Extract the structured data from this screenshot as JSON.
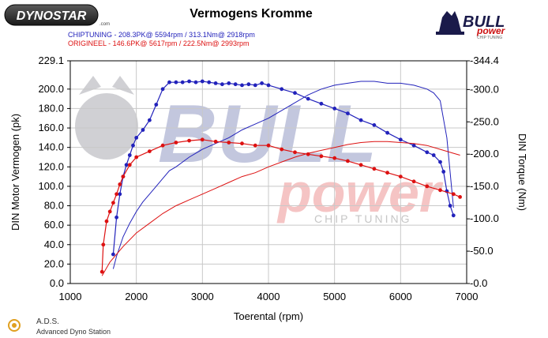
{
  "header": {
    "title": "Vermogens Kromme",
    "brand_left": "DYNOSTAR",
    "brand_left_suffix": ".com",
    "brand_right_1": "BULL",
    "brand_right_2": "power",
    "brand_right_sub": "CHIP TUNING",
    "legend_line_1": "CHIPTUNING  - 208.3PK@ 5594rpm / 313.1Nm@ 2918rpm",
    "legend_line_2": "ORIGINEEL  - 146.6PK@ 5617rpm / 222.5Nm@ 2993rpm"
  },
  "watermark": {
    "text_1": "BULL",
    "text_2": "power",
    "text_3": "CHIP TUNING"
  },
  "footer": {
    "ads_label": "A.D.S.",
    "ads_sub": "Advanced Dyno Station"
  },
  "colors": {
    "tuned": "#2222bb",
    "original": "#dd1111",
    "watermark_blue": "#9aa0c8",
    "watermark_red": "#f0a8a8"
  },
  "chart_data": {
    "type": "line",
    "xlabel": "Toerental (rpm)",
    "ylabel_left": "DIN Motor Vermogen (pk)",
    "ylabel_right": "DIN Torque (Nm)",
    "xlim": [
      1000,
      7000
    ],
    "ylim_left": [
      0,
      229.1
    ],
    "ylim_right": [
      0,
      344.4
    ],
    "x_ticks": [
      "1000",
      "2000",
      "3000",
      "4000",
      "5000",
      "6000",
      "7000"
    ],
    "y_ticks_left": [
      "0.0",
      "20.0",
      "40.0",
      "60.0",
      "80.0",
      "100.0",
      "120.0",
      "140.0",
      "160.0",
      "180.0",
      "200.0",
      "229.1"
    ],
    "y_ticks_right": [
      "0.0",
      "50.0",
      "100.0",
      "150.0",
      "200.0",
      "250.0",
      "300.0",
      "344.4"
    ],
    "grid": true,
    "series": [
      {
        "name": "CHIPTUNING",
        "kind": "torque",
        "axis": "left",
        "color": "#2222bb",
        "x": [
          1650,
          1700,
          1750,
          1800,
          1850,
          1900,
          1950,
          2000,
          2100,
          2200,
          2300,
          2400,
          2500,
          2600,
          2700,
          2800,
          2900,
          3000,
          3100,
          3200,
          3300,
          3400,
          3500,
          3600,
          3700,
          3800,
          3900,
          4000,
          4200,
          4400,
          4600,
          4800,
          5000,
          5200,
          5400,
          5600,
          5800,
          6000,
          6200,
          6400,
          6500,
          6600,
          6650,
          6700,
          6750,
          6800
        ],
        "y": [
          30,
          68,
          92,
          110,
          122,
          132,
          142,
          150,
          158,
          168,
          184,
          200,
          207,
          207,
          207,
          208,
          207,
          208,
          207,
          206,
          205,
          206,
          205,
          204,
          205,
          204,
          206,
          204,
          200,
          196,
          190,
          185,
          180,
          175,
          168,
          163,
          155,
          148,
          142,
          135,
          132,
          125,
          115,
          95,
          80,
          70
        ]
      },
      {
        "name": "CHIPTUNING",
        "kind": "power",
        "axis": "left",
        "color": "#2222bb",
        "x": [
          1650,
          1700,
          1800,
          1900,
          2000,
          2100,
          2200,
          2300,
          2400,
          2500,
          2600,
          2800,
          3000,
          3200,
          3400,
          3600,
          3800,
          4000,
          4200,
          4400,
          4600,
          4800,
          5000,
          5200,
          5400,
          5600,
          5800,
          6000,
          6200,
          6400,
          6500,
          6600,
          6700,
          6800
        ],
        "y": [
          15,
          28,
          48,
          62,
          74,
          84,
          92,
          100,
          108,
          116,
          120,
          130,
          138,
          144,
          150,
          158,
          164,
          170,
          178,
          186,
          194,
          200,
          204,
          206,
          208,
          208,
          206,
          206,
          204,
          200,
          196,
          188,
          150,
          78
        ]
      },
      {
        "name": "ORIGINEEL",
        "kind": "torque",
        "axis": "left",
        "color": "#dd1111",
        "x": [
          1480,
          1500,
          1550,
          1600,
          1650,
          1700,
          1750,
          1800,
          1900,
          2000,
          2200,
          2400,
          2600,
          2800,
          3000,
          3200,
          3400,
          3600,
          3800,
          4000,
          4200,
          4400,
          4600,
          4800,
          5000,
          5200,
          5400,
          5600,
          5800,
          6000,
          6200,
          6400,
          6600,
          6800,
          6900
        ],
        "y": [
          12,
          40,
          64,
          74,
          83,
          92,
          102,
          110,
          122,
          130,
          136,
          142,
          145,
          147,
          148,
          146,
          145,
          144,
          142,
          142,
          138,
          135,
          133,
          131,
          129,
          126,
          122,
          118,
          114,
          110,
          105,
          100,
          96,
          92,
          89
        ]
      },
      {
        "name": "ORIGINEEL",
        "kind": "power",
        "axis": "left",
        "color": "#dd1111",
        "x": [
          1480,
          1600,
          1800,
          2000,
          2200,
          2400,
          2600,
          2800,
          3000,
          3200,
          3400,
          3600,
          3800,
          4000,
          4200,
          4400,
          4600,
          4800,
          5000,
          5200,
          5400,
          5600,
          5800,
          6000,
          6200,
          6400,
          6600,
          6800,
          6900
        ],
        "y": [
          8,
          22,
          38,
          52,
          62,
          72,
          80,
          86,
          92,
          98,
          104,
          110,
          114,
          120,
          125,
          130,
          134,
          137,
          140,
          143,
          145,
          146,
          146,
          145,
          144,
          142,
          138,
          134,
          132
        ]
      }
    ]
  }
}
